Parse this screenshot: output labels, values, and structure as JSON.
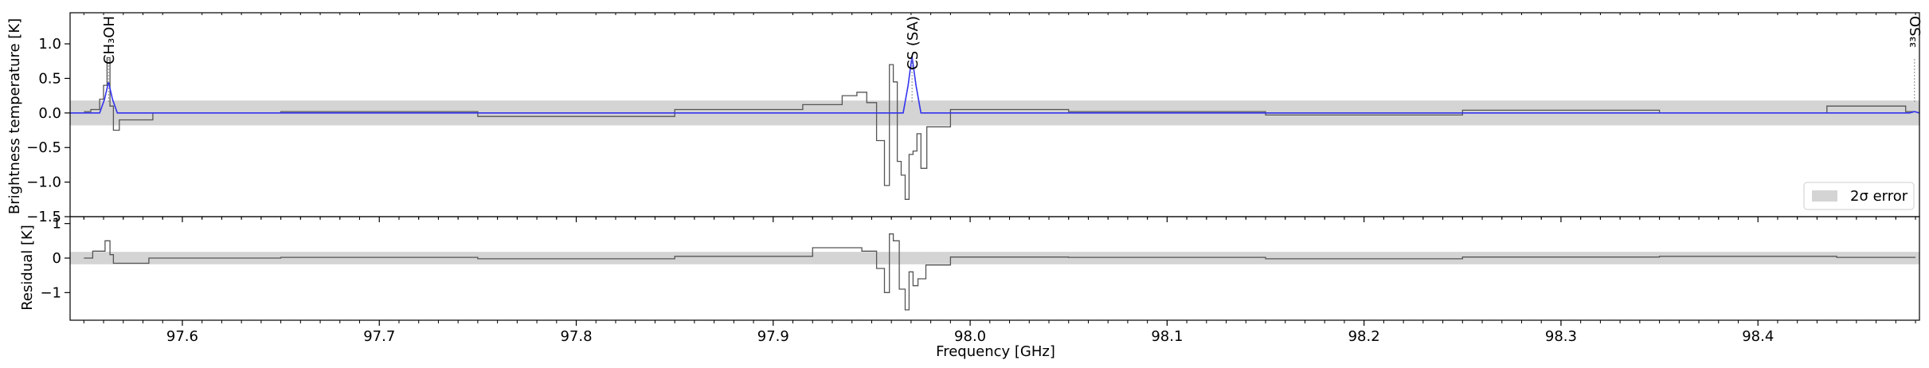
{
  "colors": {
    "data": "#555555",
    "model": "#3333ee",
    "band": "#d4d4d4",
    "axis": "#000000",
    "line_label_marker": "#888888"
  },
  "chart_data": [
    {
      "type": "line",
      "panel": "spectrum",
      "xlabel": "",
      "ylabel": "Brightness temperature [K]",
      "xlim": [
        97.543,
        98.482
      ],
      "ylim": [
        -1.5,
        1.45
      ],
      "y_ticks": [
        -1.5,
        -1.0,
        -0.5,
        0.0,
        0.5,
        1.0
      ],
      "y_tick_labels": [
        "−1.5",
        "−1.0",
        "−0.5",
        "0.0",
        "0.5",
        "1.0"
      ],
      "error_band": {
        "label": "2σ error",
        "ymin": -0.18,
        "ymax": 0.18
      },
      "legend": {
        "position": "bottom-right",
        "entries": [
          "2σ error"
        ]
      },
      "line_labels": [
        {
          "label": "CH3OH",
          "display": "CH₃OH",
          "x": 97.5625
        },
        {
          "label": "CS (SA)",
          "display": "CS (SA)",
          "x": 97.9705
        },
        {
          "label": "33SO",
          "display": "³³SO",
          "x": 98.4795
        }
      ],
      "series": [
        {
          "name": "",
          "role": "observed",
          "style": "step",
          "x": [
            97.55,
            97.557,
            97.559,
            97.561,
            97.5625,
            97.564,
            97.566,
            97.57,
            97.6,
            97.7,
            97.8,
            97.9,
            97.93,
            97.94,
            97.945,
            97.95,
            97.955,
            97.958,
            97.96,
            97.962,
            97.964,
            97.966,
            97.968,
            97.97,
            97.972,
            97.974,
            97.976,
            97.98,
            98.0,
            98.1,
            98.2,
            98.3,
            98.4,
            98.47,
            98.48
          ],
          "y": [
            0.02,
            0.05,
            0.2,
            0.4,
            0.8,
            0.1,
            -0.25,
            -0.1,
            0.0,
            0.02,
            -0.05,
            0.05,
            0.12,
            0.25,
            0.3,
            0.15,
            -0.4,
            -1.05,
            0.7,
            0.45,
            -0.7,
            -0.9,
            -1.25,
            -0.6,
            -0.55,
            -0.3,
            -0.8,
            -0.2,
            0.05,
            0.02,
            -0.03,
            0.04,
            0.0,
            0.1,
            0.02
          ]
        },
        {
          "name": "",
          "role": "model",
          "style": "line",
          "x": [
            97.543,
            97.558,
            97.5605,
            97.5625,
            97.5645,
            97.567,
            97.966,
            97.9685,
            97.9705,
            97.9725,
            97.975,
            98.477,
            98.4795,
            98.482
          ],
          "y": [
            0.0,
            0.0,
            0.2,
            0.45,
            0.2,
            0.0,
            0.0,
            0.4,
            0.82,
            0.4,
            0.0,
            0.0,
            0.02,
            0.0
          ]
        }
      ]
    },
    {
      "type": "line",
      "panel": "residual",
      "xlabel": "Frequency [GHz]",
      "ylabel": "Residual [K]",
      "xlim": [
        97.543,
        98.482
      ],
      "ylim": [
        -1.8,
        1.2
      ],
      "y_ticks": [
        -1.0,
        0.0,
        1.0
      ],
      "y_tick_labels": [
        "−1",
        "0",
        "1"
      ],
      "x_ticks": [
        97.6,
        97.7,
        97.8,
        97.9,
        98.0,
        98.1,
        98.2,
        98.3,
        98.4
      ],
      "x_tick_labels": [
        "97.6",
        "97.7",
        "97.8",
        "97.9",
        "98.0",
        "98.1",
        "98.2",
        "98.3",
        "98.4"
      ],
      "error_band": {
        "ymin": -0.18,
        "ymax": 0.18
      },
      "series": [
        {
          "name": "",
          "role": "residual",
          "style": "step",
          "x": [
            97.55,
            97.559,
            97.5625,
            97.564,
            97.566,
            97.6,
            97.7,
            97.8,
            97.9,
            97.94,
            97.95,
            97.955,
            97.958,
            97.96,
            97.962,
            97.966,
            97.968,
            97.97,
            97.972,
            97.975,
            97.98,
            98.0,
            98.1,
            98.2,
            98.3,
            98.4,
            98.48
          ],
          "y": [
            0.0,
            0.2,
            0.5,
            0.1,
            -0.15,
            0.0,
            0.02,
            -0.02,
            0.05,
            0.3,
            0.2,
            -0.3,
            -1.0,
            0.7,
            0.5,
            -0.9,
            -1.5,
            -0.4,
            -0.8,
            -0.6,
            -0.2,
            0.03,
            0.02,
            -0.02,
            0.03,
            0.05,
            0.02
          ]
        }
      ]
    }
  ]
}
